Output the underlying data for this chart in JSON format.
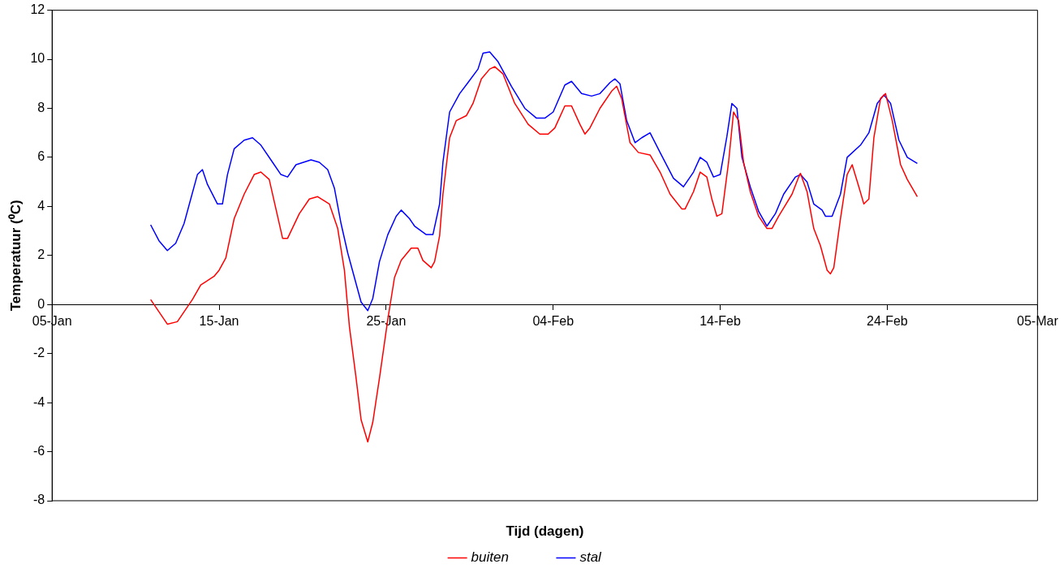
{
  "chart_data": {
    "type": "line",
    "xlabel": "Tijd (dagen)",
    "ylabel": "Temperatuur (⁰C)",
    "xlim": [
      "--01-05",
      "--03-05"
    ],
    "xticks": [
      {
        "value": "--01-05",
        "label": "05-Jan"
      },
      {
        "value": "--01-15",
        "label": "15-Jan"
      },
      {
        "value": "--01-25",
        "label": "25-Jan"
      },
      {
        "value": "--02-04",
        "label": "04-Feb"
      },
      {
        "value": "--02-14",
        "label": "14-Feb"
      },
      {
        "value": "--02-24",
        "label": "24-Feb"
      },
      {
        "value": "--03-05",
        "label": "05-Mar"
      }
    ],
    "ylim": [
      -8,
      12
    ],
    "yticks": [
      -8,
      -6,
      -4,
      -2,
      0,
      2,
      4,
      6,
      8,
      10,
      12
    ],
    "grid": false,
    "legend": "bottom",
    "marker": "none",
    "line_style": "solid",
    "series": [
      {
        "name": "buiten",
        "color": "#ff0000",
        "x": [
          "--01-10T21:36",
          "--01-11T21:36",
          "--01-12T12:00",
          "--01-13T09:36",
          "--01-13T21:36",
          "--01-14T16:48",
          "--01-15T00:00",
          "--01-15T09:36",
          "--01-15T21:36",
          "--01-16T12:00",
          "--01-17T02:24",
          "--01-17T12:00",
          "--01-18T00:00",
          "--01-18T12:00",
          "--01-18T19:12",
          "--01-19T02:24",
          "--01-19T19:12",
          "--01-20T09:36",
          "--01-20T21:36",
          "--01-21T14:24",
          "--01-22T02:24",
          "--01-22T12:00",
          "--01-22T19:12",
          "--01-23T04:48",
          "--01-23T12:00",
          "--01-23T21:36",
          "--01-24T04:48",
          "--01-24T14:24",
          "--01-25T02:24",
          "--01-25T12:00",
          "--01-25T21:36",
          "--01-26T12:00",
          "--01-26T21:36",
          "--01-27T04:48",
          "--01-27T16:48",
          "--01-27T21:36",
          "--01-28T04:48",
          "--01-28T09:36",
          "--01-28T19:12",
          "--01-29T04:48",
          "--01-29T19:12",
          "--01-30T04:48",
          "--01-30T16:48",
          "--01-31T04:48",
          "--01-31T12:00",
          "--02-01T00:00",
          "--02-01T16:48",
          "--02-02T12:00",
          "--02-03T04:48",
          "--02-03T16:48",
          "--02-04T02:24",
          "--02-04T16:48",
          "--02-05T02:24",
          "--02-05T14:24",
          "--02-05T21:36",
          "--02-06T04:48",
          "--02-06T19:12",
          "--02-07T12:00",
          "--02-07T19:12",
          "--02-08T02:24",
          "--02-08T14:24",
          "--02-09T02:24",
          "--02-09T19:12",
          "--02-10T09:36",
          "--02-11T00:00",
          "--02-11T16:48",
          "--02-11T21:36",
          "--02-12T09:36",
          "--02-12T19:12",
          "--02-13T04:48",
          "--02-13T12:00",
          "--02-13T19:12",
          "--02-14T02:24",
          "--02-14T12:00",
          "--02-14T19:12",
          "--02-15T02:24",
          "--02-15T09:36",
          "--02-15T19:12",
          "--02-16T07:12",
          "--02-16T19:12",
          "--02-17T02:24",
          "--02-17T12:00",
          "--02-18T07:12",
          "--02-18T16:48",
          "--02-18T19:12",
          "--02-19T04:48",
          "--02-19T14:24",
          "--02-20T00:00",
          "--02-20T09:36",
          "--02-20T14:24",
          "--02-20T19:12",
          "--02-21T04:48",
          "--02-21T14:24",
          "--02-21T21:36",
          "--02-22T07:12",
          "--02-22T14:24",
          "--02-22T21:36",
          "--02-23T04:48",
          "--02-23T14:24",
          "--02-23T21:36",
          "--02-24T07:12",
          "--02-24T19:12",
          "--02-25T04:48",
          "--02-25T19:12"
        ],
        "values": [
          0.2,
          -0.8,
          -0.7,
          0.2,
          0.8,
          1.15,
          1.4,
          1.9,
          3.5,
          4.5,
          5.3,
          5.4,
          5.1,
          3.6,
          2.7,
          2.7,
          3.7,
          4.3,
          4.4,
          4.1,
          3.1,
          1.4,
          -0.9,
          -3.0,
          -4.7,
          -5.6,
          -4.8,
          -3.0,
          -0.6,
          1.1,
          1.8,
          2.3,
          2.3,
          1.8,
          1.5,
          1.75,
          2.8,
          4.5,
          6.8,
          7.5,
          7.7,
          8.2,
          9.2,
          9.6,
          9.7,
          9.4,
          8.2,
          7.35,
          6.95,
          6.95,
          7.2,
          8.1,
          8.1,
          7.35,
          6.95,
          7.2,
          8.0,
          8.7,
          8.9,
          8.4,
          6.6,
          6.2,
          6.1,
          5.4,
          4.5,
          3.9,
          3.9,
          4.6,
          5.4,
          5.2,
          4.3,
          3.6,
          3.7,
          5.8,
          7.85,
          7.5,
          5.8,
          4.6,
          3.6,
          3.1,
          3.1,
          3.6,
          4.5,
          5.2,
          5.35,
          4.6,
          3.1,
          2.4,
          1.4,
          1.25,
          1.5,
          3.5,
          5.3,
          5.7,
          4.8,
          4.1,
          4.3,
          6.8,
          8.4,
          8.6,
          7.5,
          5.7,
          5.1,
          4.4
        ]
      },
      {
        "name": "stal",
        "color": "#0000ff",
        "x": [
          "--01-10T21:36",
          "--01-11T09:36",
          "--01-11T21:36",
          "--01-12T09:36",
          "--01-12T21:36",
          "--01-13T07:12",
          "--01-13T16:48",
          "--01-14T00:00",
          "--01-14T07:12",
          "--01-14T21:36",
          "--01-15T04:48",
          "--01-15T12:00",
          "--01-15T21:36",
          "--01-16T12:00",
          "--01-17T00:00",
          "--01-17T12:00",
          "--01-18T04:48",
          "--01-18T16:48",
          "--01-19T02:24",
          "--01-19T14:24",
          "--01-20T12:00",
          "--01-21T00:00",
          "--01-21T12:00",
          "--01-21T21:36",
          "--01-22T07:12",
          "--01-22T16:48",
          "--01-23T02:24",
          "--01-23T12:00",
          "--01-23T21:36",
          "--01-24T04:48",
          "--01-24T14:24",
          "--01-25T02:24",
          "--01-25T14:24",
          "--01-25T21:36",
          "--01-26T09:36",
          "--01-26T16:48",
          "--01-27T09:36",
          "--01-27T19:12",
          "--01-28T04:48",
          "--01-28T09:36",
          "--01-28T19:12",
          "--01-29T09:36",
          "--01-29T21:36",
          "--01-30T12:00",
          "--01-30T19:12",
          "--01-31T04:48",
          "--01-31T16:48",
          "--02-01T12:00",
          "--02-02T07:12",
          "--02-03T00:00",
          "--02-03T12:00",
          "--02-04T00:00",
          "--02-04T16:48",
          "--02-05T02:24",
          "--02-05T16:48",
          "--02-06T07:12",
          "--02-06T19:12",
          "--02-07T09:36",
          "--02-07T16:48",
          "--02-08T00:00",
          "--02-08T09:36",
          "--02-08T21:36",
          "--02-09T07:12",
          "--02-09T19:12",
          "--02-10T09:36",
          "--02-11T04:48",
          "--02-11T19:12",
          "--02-12T09:36",
          "--02-12T19:12",
          "--02-13T04:48",
          "--02-13T14:24",
          "--02-14T00:00",
          "--02-14T09:36",
          "--02-14T16:48",
          "--02-15T00:00",
          "--02-15T07:12",
          "--02-15T19:12",
          "--02-16T07:12",
          "--02-16T19:12",
          "--02-17T07:12",
          "--02-17T19:12",
          "--02-18T12:00",
          "--02-18T19:12",
          "--02-19T04:48",
          "--02-19T14:24",
          "--02-20T02:24",
          "--02-20T07:12",
          "--02-20T16:48",
          "--02-21T04:48",
          "--02-21T14:24",
          "--02-22T09:36",
          "--02-22T21:36",
          "--02-23T09:36",
          "--02-23T19:12",
          "--02-24T04:48",
          "--02-24T16:48",
          "--02-25T04:48",
          "--02-25T19:12"
        ],
        "values": [
          3.25,
          2.6,
          2.2,
          2.5,
          3.3,
          4.3,
          5.3,
          5.5,
          4.9,
          4.1,
          4.1,
          5.3,
          6.35,
          6.7,
          6.8,
          6.5,
          5.8,
          5.3,
          5.2,
          5.7,
          5.9,
          5.8,
          5.5,
          4.75,
          3.3,
          2.1,
          1.1,
          0.1,
          -0.25,
          0.25,
          1.75,
          2.85,
          3.6,
          3.85,
          3.5,
          3.2,
          2.85,
          2.85,
          4.1,
          5.8,
          7.85,
          8.6,
          9.05,
          9.6,
          10.25,
          10.3,
          9.9,
          8.9,
          8.0,
          7.6,
          7.6,
          7.85,
          8.95,
          9.1,
          8.6,
          8.5,
          8.6,
          9.05,
          9.2,
          9.0,
          7.5,
          6.6,
          6.8,
          7.0,
          6.2,
          5.15,
          4.8,
          5.4,
          6.0,
          5.8,
          5.2,
          5.3,
          6.85,
          8.2,
          8.0,
          6.0,
          4.8,
          3.8,
          3.2,
          3.7,
          4.5,
          5.2,
          5.3,
          5.0,
          4.1,
          3.85,
          3.6,
          3.6,
          4.5,
          6.0,
          6.5,
          7.0,
          8.2,
          8.55,
          8.2,
          6.7,
          6.0,
          5.75
        ]
      }
    ]
  }
}
